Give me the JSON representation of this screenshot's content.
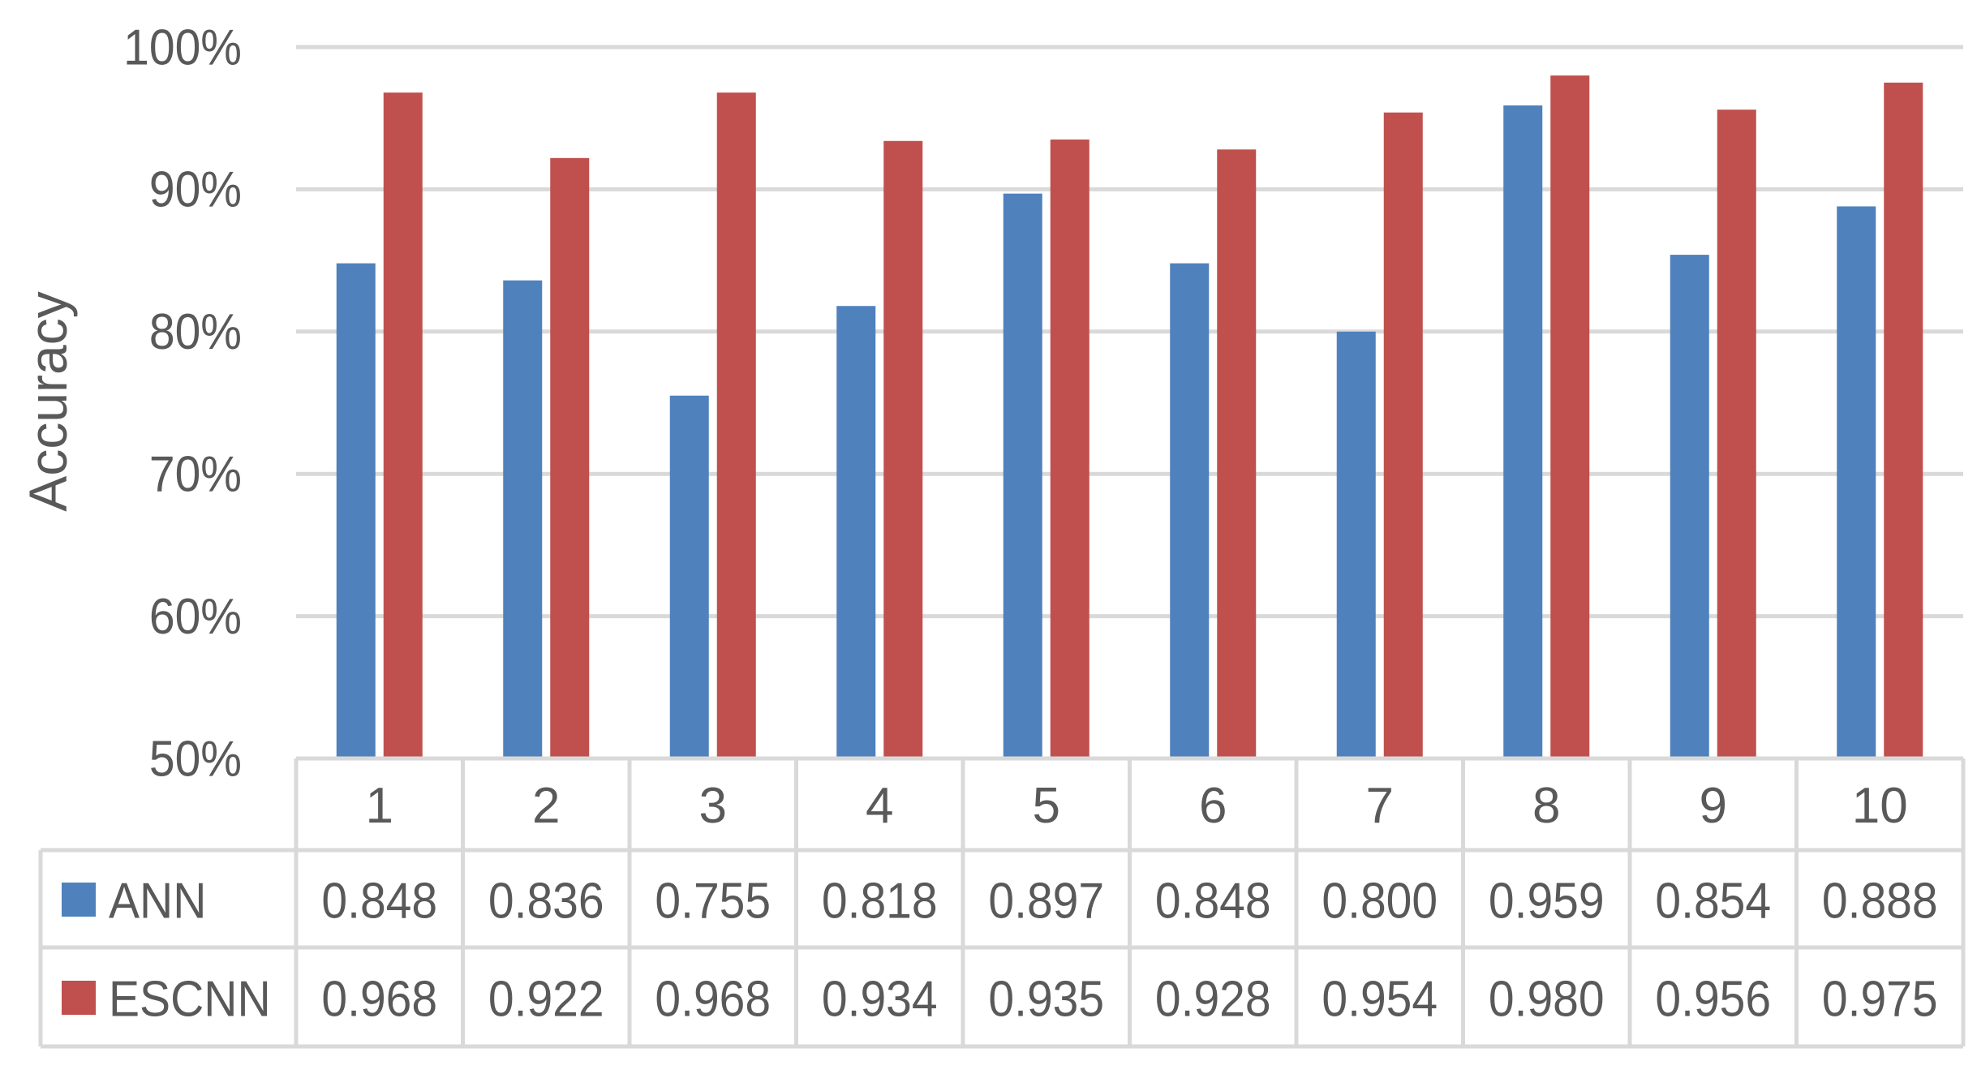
{
  "chart_data": {
    "type": "bar",
    "title": "",
    "xlabel": "",
    "ylabel": "Accuracy",
    "ylim": [
      0.5,
      1.0
    ],
    "yticks": [
      0.5,
      0.6,
      0.7,
      0.8,
      0.9,
      1.0
    ],
    "ytick_labels": [
      "50%",
      "60%",
      "70%",
      "80%",
      "90%",
      "100%"
    ],
    "grid": true,
    "legend": "data-table",
    "categories": [
      "1",
      "2",
      "3",
      "4",
      "5",
      "6",
      "7",
      "8",
      "9",
      "10"
    ],
    "series": [
      {
        "name": "ANN",
        "color": "#4f81bd",
        "values": [
          0.848,
          0.836,
          0.755,
          0.818,
          0.897,
          0.848,
          0.8,
          0.959,
          0.854,
          0.888
        ],
        "labels": [
          "0.848",
          "0.836",
          "0.755",
          "0.818",
          "0.897",
          "0.848",
          "0.800",
          "0.959",
          "0.854",
          "0.888"
        ]
      },
      {
        "name": "ESCNN",
        "color": "#c0504d",
        "values": [
          0.968,
          0.922,
          0.968,
          0.934,
          0.935,
          0.928,
          0.954,
          0.98,
          0.956,
          0.975
        ],
        "labels": [
          "0.968",
          "0.922",
          "0.968",
          "0.934",
          "0.935",
          "0.928",
          "0.954",
          "0.980",
          "0.956",
          "0.975"
        ]
      }
    ]
  }
}
